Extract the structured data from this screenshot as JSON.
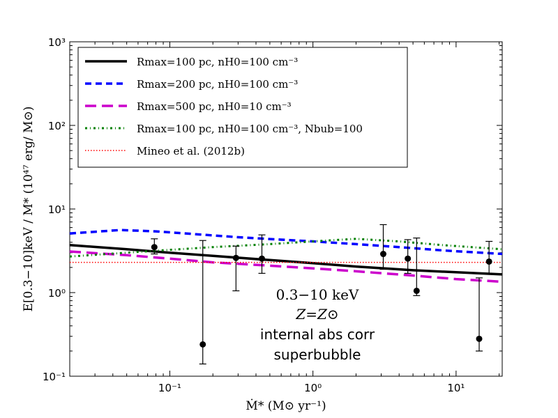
{
  "chart_data": {
    "type": "line",
    "xscale": "log",
    "yscale": "log",
    "xlim": [
      0.02,
      21
    ],
    "ylim": [
      0.1,
      1000
    ],
    "xlabel": "Ṁ* (M⊙ yr⁻¹)",
    "ylabel": "E[0.3−10]keV / M* (10⁴⁷ erg/ M⊙)",
    "x_ticks": [
      {
        "value": 0.1,
        "label": "10⁻¹"
      },
      {
        "value": 1,
        "label": "10⁰"
      },
      {
        "value": 10,
        "label": "10¹"
      }
    ],
    "y_ticks": [
      {
        "value": 0.1,
        "label": "10⁻¹"
      },
      {
        "value": 1,
        "label": "10⁰"
      },
      {
        "value": 10,
        "label": "10¹"
      },
      {
        "value": 100,
        "label": "10²"
      },
      {
        "value": 1000,
        "label": "10³"
      }
    ],
    "legend_position": "top-left",
    "series": [
      {
        "name": "Rmax=100 pc, nH0=100 cm⁻³",
        "color": "#000000",
        "style": "solid",
        "x": [
          0.02,
          0.05,
          0.1,
          0.2,
          0.5,
          1,
          2,
          5,
          10,
          21
        ],
        "y": [
          3.7,
          3.3,
          3.0,
          2.75,
          2.45,
          2.25,
          2.05,
          1.85,
          1.75,
          1.65
        ]
      },
      {
        "name": "Rmax=200 pc, nH0=100 cm⁻³",
        "color": "#0000ff",
        "style": "dashed",
        "x": [
          0.02,
          0.045,
          0.08,
          0.15,
          0.3,
          0.6,
          1,
          2,
          4,
          8,
          21
        ],
        "y": [
          5.1,
          5.6,
          5.4,
          5.0,
          4.6,
          4.3,
          4.1,
          3.8,
          3.5,
          3.2,
          2.9
        ]
      },
      {
        "name": "Rmax=500 pc, nH0=10 cm⁻³",
        "color": "#cc00cc",
        "style": "longdash",
        "x": [
          0.02,
          0.05,
          0.1,
          0.2,
          0.5,
          1,
          2,
          5,
          10,
          21
        ],
        "y": [
          3.1,
          2.8,
          2.55,
          2.3,
          2.1,
          1.95,
          1.8,
          1.6,
          1.45,
          1.35
        ]
      },
      {
        "name": "Rmax=100 pc, nH0=100 cm⁻³, Nbub=100",
        "color": "#008000",
        "style": "dashdot",
        "x": [
          0.02,
          0.05,
          0.1,
          0.2,
          0.5,
          1,
          2,
          4,
          8,
          21
        ],
        "y": [
          2.7,
          3.0,
          3.25,
          3.5,
          3.8,
          4.1,
          4.4,
          4.1,
          3.7,
          3.3
        ]
      },
      {
        "name": "Mineo et al. (2012b)",
        "color": "#ff0000",
        "style": "dotted",
        "x": [
          0.02,
          21
        ],
        "y": [
          2.3,
          2.3
        ]
      }
    ],
    "data_points": [
      {
        "x": 0.078,
        "y": 3.5,
        "lo": 2.9,
        "hi": 4.4
      },
      {
        "x": 0.17,
        "y": 0.24,
        "lo": 0.14,
        "hi": 4.2
      },
      {
        "x": 0.29,
        "y": 2.6,
        "lo": 1.05,
        "hi": 3.6
      },
      {
        "x": 0.44,
        "y": 2.55,
        "lo": 1.7,
        "hi": 4.9
      },
      {
        "x": 3.1,
        "y": 2.9,
        "lo": 1.9,
        "hi": 6.5
      },
      {
        "x": 4.6,
        "y": 2.55,
        "lo": 1.7,
        "hi": 4.3
      },
      {
        "x": 5.3,
        "y": 1.05,
        "lo": 0.92,
        "hi": 4.5
      },
      {
        "x": 14.5,
        "y": 0.28,
        "lo": 0.2,
        "hi": 1.5
      },
      {
        "x": 17,
        "y": 2.35,
        "lo": 1.7,
        "hi": 4.1
      }
    ],
    "annotations": [
      "0.3−10 keV",
      "Z=Z⊙",
      "internal abs corr",
      "superbubble"
    ]
  }
}
